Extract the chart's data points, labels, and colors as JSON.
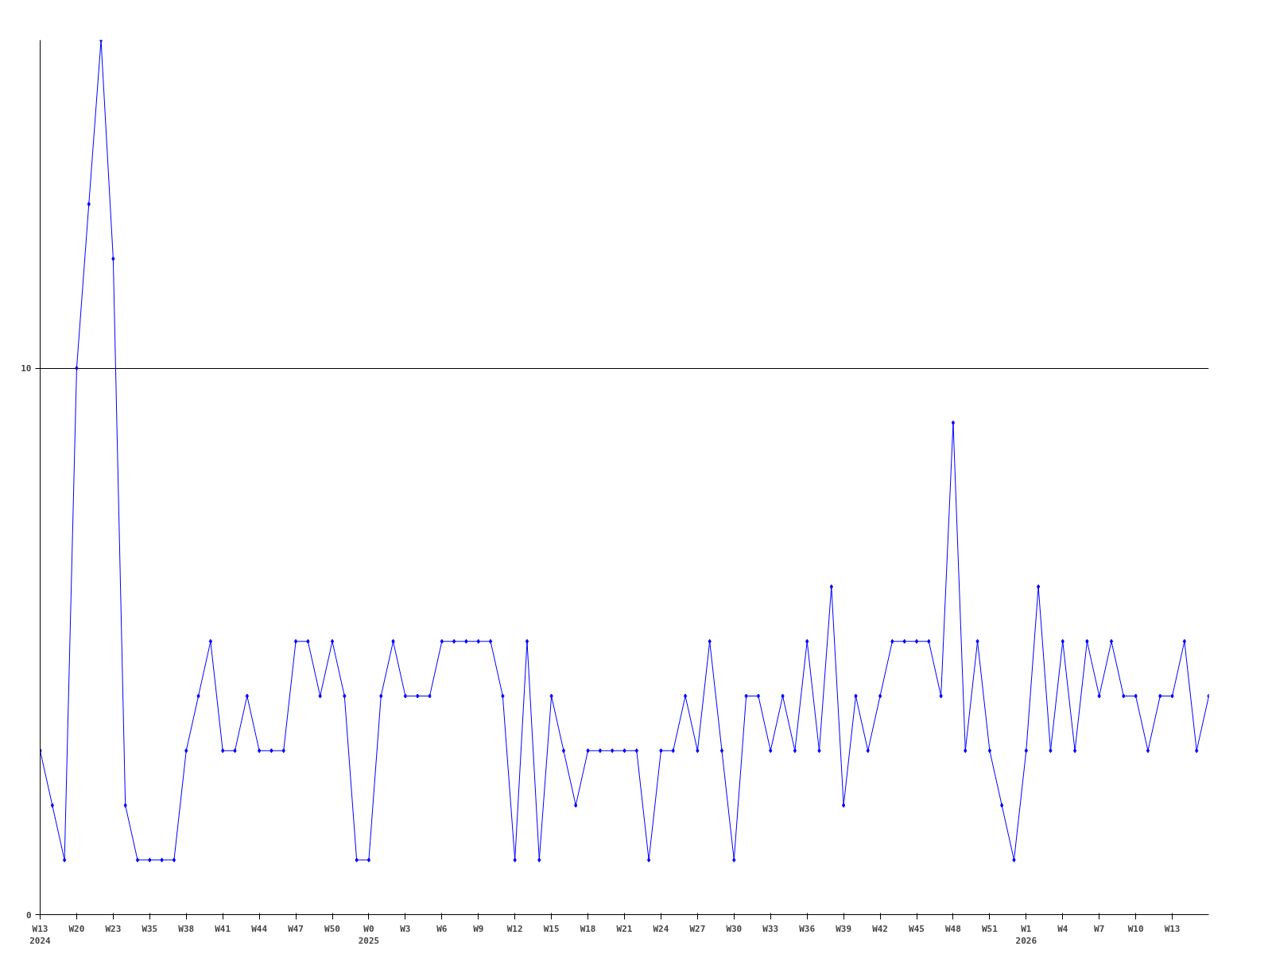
{
  "chart_data": {
    "type": "line",
    "categories": [
      "W13\n2024",
      null,
      null,
      "W20",
      null,
      null,
      "W23",
      null,
      null,
      "W35",
      null,
      null,
      "W38",
      null,
      null,
      "W41",
      null,
      null,
      "W44",
      null,
      null,
      "W47",
      null,
      null,
      "W50",
      null,
      null,
      "W0\n2025",
      null,
      null,
      "W3",
      null,
      null,
      "W6",
      null,
      null,
      "W9",
      null,
      null,
      "W12",
      null,
      null,
      "W15",
      null,
      null,
      "W18",
      null,
      null,
      "W21",
      null,
      null,
      "W24",
      null,
      null,
      "W27",
      null,
      null,
      "W30",
      null,
      null,
      "W33",
      null,
      null,
      "W36",
      null,
      null,
      "W39",
      null,
      null,
      "W42",
      null,
      null,
      "W45",
      null,
      null,
      "W48",
      null,
      null,
      "W51",
      null,
      null,
      "W1\n2026",
      null,
      null,
      "W4",
      null,
      null,
      "W7",
      null,
      null,
      "W10",
      null,
      null,
      "W13",
      null,
      null,
      null
    ],
    "series": [
      {
        "color": "#0000ff",
        "values": [
          3,
          2,
          1,
          10,
          13,
          16,
          12,
          2,
          1,
          1,
          1,
          1,
          3,
          4,
          5,
          3,
          3,
          4,
          3,
          3,
          3,
          5,
          5,
          4,
          5,
          4,
          1,
          1,
          4,
          5,
          4,
          4,
          4,
          5,
          5,
          5,
          5,
          5,
          4,
          1,
          5,
          1,
          4,
          3,
          2,
          3,
          3,
          3,
          3,
          3,
          1,
          3,
          3,
          4,
          3,
          5,
          3,
          1,
          4,
          4,
          3,
          4,
          3,
          5,
          3,
          6,
          2,
          4,
          3,
          4,
          5,
          5,
          5,
          5,
          4,
          9,
          3,
          5,
          3,
          2,
          1,
          3,
          6,
          3,
          5,
          3,
          5,
          4,
          5,
          4,
          4,
          3,
          4,
          4,
          5,
          3,
          4
        ]
      }
    ],
    "ylim": [
      0,
      16
    ],
    "yticks": [
      0,
      10
    ],
    "grid": "y",
    "marker": "diamond",
    "line_style": "solid"
  }
}
